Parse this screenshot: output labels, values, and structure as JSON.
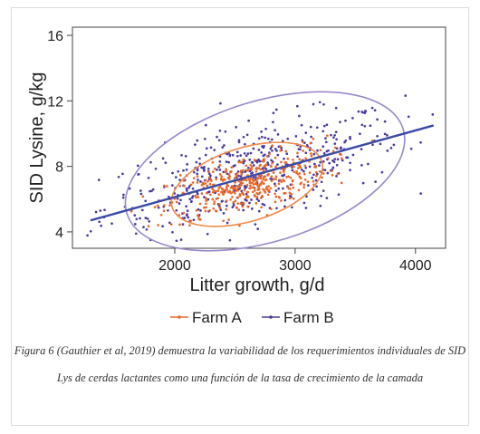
{
  "caption": "Figura 6 (Gauthier et al, 2019) demuestra la variabilidad de los requerimientos individuales de SID Lys  de cerdas lactantes como una función de la tasa de crecimiento de la camada",
  "chart_data": {
    "type": "scatter",
    "title": "",
    "xlabel": "Litter growth, g/d",
    "ylabel": "SID Lysine, g/kg",
    "xlim": [
      1150,
      4250
    ],
    "ylim": [
      3.0,
      16.5
    ],
    "xticks": [
      2000,
      3000,
      4000
    ],
    "yticks": [
      4,
      8,
      12,
      16
    ],
    "grid": false,
    "legend": "bottom-center",
    "series": [
      {
        "name": "Farm A",
        "color": "#e8692a",
        "marker": "dot",
        "center": [
          2600,
          6.9
        ],
        "spread": [
          330,
          1.05
        ],
        "n": 420,
        "ellipse": {
          "center": [
            2600,
            6.9
          ],
          "semi_axes": [
            650,
            2.25
          ],
          "color": "#f08a4b"
        }
      },
      {
        "name": "Farm B",
        "color": "#4a3a9e",
        "marker": "dot",
        "center": [
          2650,
          7.6
        ],
        "spread": [
          620,
          1.8
        ],
        "n": 520,
        "ellipse": {
          "center": [
            2750,
            7.7
          ],
          "semi_axes": [
            1200,
            4.3
          ],
          "color": "#9a88cc"
        }
      }
    ],
    "fit_line": {
      "x": [
        1300,
        4150
      ],
      "y": [
        4.7,
        10.5
      ],
      "color": "#3a4aa6"
    }
  }
}
